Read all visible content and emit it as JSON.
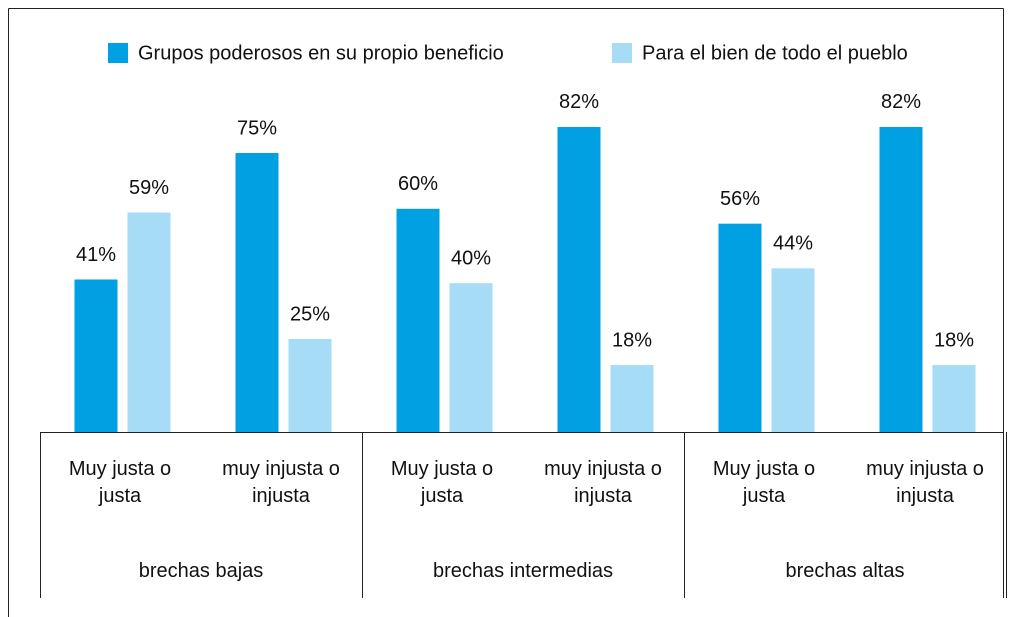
{
  "chart_data": {
    "type": "bar",
    "categories": [
      "Muy justa o\njusta",
      "muy injusta o\ninjusta",
      "Muy justa o\njusta",
      "muy injusta o\ninjusta",
      "Muy justa o\njusta",
      "muy injusta o\ninjusta"
    ],
    "groups": [
      "brechas bajas",
      "brechas intermedias",
      "brechas altas"
    ],
    "series": [
      {
        "name": "Grupos poderosos en su propio beneficio",
        "color": "#00a0e3",
        "values": [
          41,
          75,
          60,
          82,
          56,
          82
        ],
        "value_labels": [
          "41%",
          "75%",
          "60%",
          "82%",
          "56%",
          "82%"
        ]
      },
      {
        "name": "Para el bien de todo el pueblo",
        "color": "#a6dcf6",
        "values": [
          59,
          25,
          40,
          18,
          44,
          18
        ],
        "value_labels": [
          "59%",
          "25%",
          "40%",
          "18%",
          "44%",
          "18%"
        ]
      }
    ],
    "legend": "top"
  }
}
